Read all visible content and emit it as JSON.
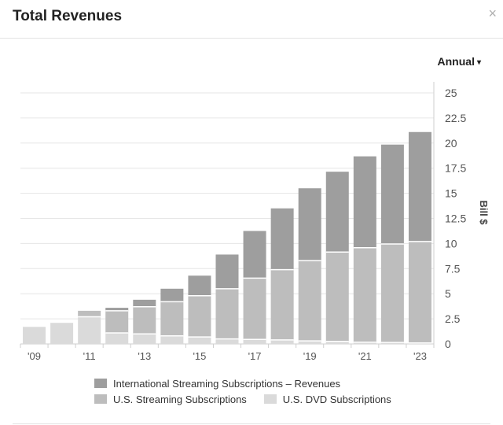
{
  "panel": {
    "title": "Total Revenues",
    "close_glyph": "×",
    "period": "Annual",
    "period_caret": "▾"
  },
  "colors": {
    "international": "#9e9e9e",
    "us_streaming": "#bdbdbd",
    "dvd": "#dadada",
    "grid": "#e6e6e6",
    "axis_text": "#555555"
  },
  "chart_data": {
    "type": "bar",
    "stacked": true,
    "title": "Total Revenues",
    "ylabel": "Bill $",
    "ylim": [
      0,
      25
    ],
    "y_ticks": [
      "25",
      "22.5",
      "20",
      "17.5",
      "15",
      "12.5",
      "10",
      "7.5",
      "5",
      "2.5",
      "0"
    ],
    "y_tick_values": [
      25,
      22.5,
      20,
      17.5,
      15,
      12.5,
      10,
      7.5,
      5,
      2.5,
      0
    ],
    "categories": [
      "2009",
      "2010",
      "2011",
      "2012",
      "2013",
      "2014",
      "2015",
      "2016",
      "2017",
      "2018",
      "2019",
      "2020",
      "2021",
      "2022",
      "2023"
    ],
    "x_tick_labels": [
      "'09",
      "",
      "'11",
      "",
      "'13",
      "",
      "'15",
      "",
      "'17",
      "",
      "'19",
      "",
      "'21",
      "",
      "'23"
    ],
    "series": [
      {
        "name": "U.S. DVD Subscriptions",
        "values": [
          1.7,
          2.1,
          2.7,
          1.1,
          1.0,
          0.8,
          0.7,
          0.5,
          0.45,
          0.4,
          0.3,
          0.25,
          0.18,
          0.15,
          0.1
        ]
      },
      {
        "name": "U.S. Streaming Subscriptions",
        "values": [
          0,
          0,
          0.6,
          2.2,
          2.7,
          3.4,
          4.1,
          5.0,
          6.1,
          7.0,
          8.0,
          8.9,
          9.4,
          9.8,
          10.1
        ]
      },
      {
        "name": "International Streaming Subscriptions – Revenues",
        "values": [
          0,
          0,
          0,
          0.3,
          0.7,
          1.3,
          2.0,
          3.4,
          4.7,
          6.1,
          7.2,
          8.0,
          9.1,
          9.9,
          10.9
        ]
      }
    ],
    "legend": {
      "rows": [
        [
          "International Streaming Subscriptions – Revenues"
        ],
        [
          "U.S. Streaming Subscriptions",
          "U.S. DVD Subscriptions"
        ]
      ],
      "placement": "bottom"
    },
    "grid": true
  }
}
